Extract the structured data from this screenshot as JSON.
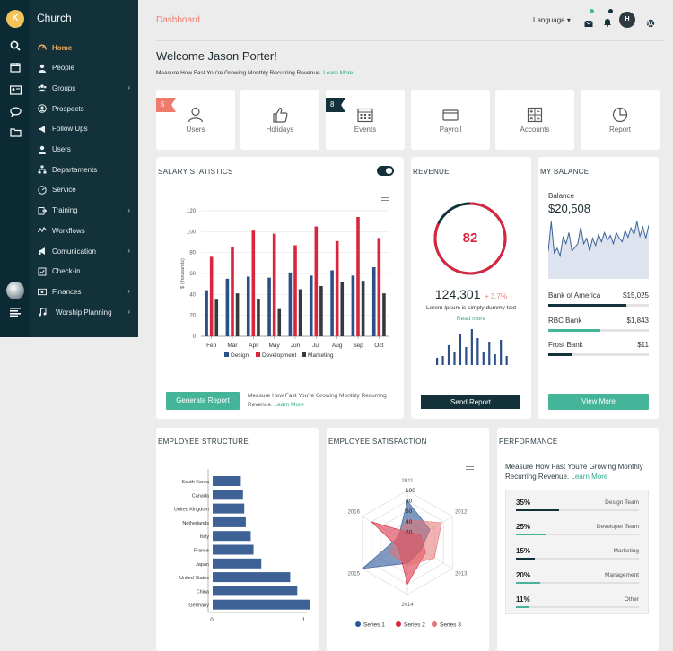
{
  "sidebar": {
    "brand": "Church",
    "logo_letter": "K",
    "items": [
      {
        "label": "Home",
        "icon": "gauge-icon",
        "active": true,
        "chevron": false
      },
      {
        "label": "People",
        "icon": "person-icon",
        "chevron": false
      },
      {
        "label": "Groups",
        "icon": "group-icon",
        "chevron": true
      },
      {
        "label": "Prospects",
        "icon": "user-circle-icon",
        "chevron": false
      },
      {
        "label": "Follow Ups",
        "icon": "megaphone-icon",
        "chevron": false
      },
      {
        "label": "Users",
        "icon": "users-icon",
        "chevron": false
      },
      {
        "label": "Departaments",
        "icon": "sitemap-icon",
        "chevron": false
      },
      {
        "label": "Service",
        "icon": "dial-icon",
        "chevron": false
      },
      {
        "label": "Training",
        "icon": "export-icon",
        "chevron": true
      },
      {
        "label": "Workflows",
        "icon": "wave-icon",
        "chevron": false
      },
      {
        "label": "Comunication",
        "icon": "bullhorn-icon",
        "chevron": true
      },
      {
        "label": "Check-in",
        "icon": "checkbox-icon",
        "chevron": false
      },
      {
        "label": "Finances",
        "icon": "money-icon",
        "chevron": true
      },
      {
        "label": "Worship Planning",
        "icon": "music-icon",
        "chevron": true
      }
    ],
    "chevron_glyph": "›"
  },
  "header": {
    "title": "Dashboard",
    "language": "Language ▾",
    "avatar": "H"
  },
  "welcome": {
    "title": "Welcome Jason Porter!",
    "subtitle": "Measure How Fast You're Growing Monthly Recurring Revenue.",
    "link": "Learn More"
  },
  "tiles": [
    {
      "label": "Users",
      "badge": "5",
      "badge_color": "red"
    },
    {
      "label": "Holidays"
    },
    {
      "label": "Events",
      "badge": "8",
      "badge_color": "navy"
    },
    {
      "label": "Payroll"
    },
    {
      "label": "Accounts"
    },
    {
      "label": "Report"
    }
  ],
  "salary": {
    "title": "SALARY STATISTICS",
    "button": "Generate Report",
    "note": "Measure How Fast You're Growing Monthly Recurring Revenue.",
    "note_link": "Learn More"
  },
  "revenue": {
    "title": "REVENUE",
    "gauge_value": "82",
    "amount": "124,301",
    "change": "+ 3.7%",
    "desc": "Lorem Ipsum is simply dummy text",
    "link": "Read more",
    "button": "Send Report"
  },
  "balance": {
    "title": "MY BALANCE",
    "label": "Balance",
    "amount": "$20,508",
    "rows": [
      {
        "name": "Bank of America",
        "amount": "$15,025",
        "fill": 0.78,
        "color": "#12313b"
      },
      {
        "name": "RBC Bank",
        "amount": "$1,843",
        "fill": 0.52,
        "color": "#45b59a"
      },
      {
        "name": "Frost Bank",
        "amount": "$11",
        "fill": 0.23,
        "color": "#12313b"
      }
    ],
    "button": "View More"
  },
  "structure": {
    "title": "EMPLOYEE STRUCTURE"
  },
  "satisfaction": {
    "title": "EMPLOYEE SATISFACTION"
  },
  "performance": {
    "title": "PERFORMANCE",
    "text": "Measure How Fast You're Growing Monthly Recurring Revenue.",
    "link": "Learn More",
    "rows": [
      {
        "pct": "35%",
        "name": "Design Team",
        "fill": 0.35,
        "color": "#12313b"
      },
      {
        "pct": "25%",
        "name": "Developer Team",
        "fill": 0.25,
        "color": "#45b59a"
      },
      {
        "pct": "15%",
        "name": "Marketing",
        "fill": 0.15,
        "color": "#12313b"
      },
      {
        "pct": "20%",
        "name": "Management",
        "fill": 0.2,
        "color": "#45b59a"
      },
      {
        "pct": "11%",
        "name": "Other",
        "fill": 0.11,
        "color": "#45b59a"
      }
    ]
  },
  "chart_data": [
    {
      "type": "bar",
      "id": "salary",
      "categories": [
        "Feb",
        "Mar",
        "Apr",
        "May",
        "Jun",
        "Jul",
        "Aug",
        "Sep",
        "Oct"
      ],
      "series": [
        {
          "name": "Design",
          "color": "#2b4f86",
          "values": [
            44,
            55,
            57,
            56,
            61,
            58,
            63,
            58,
            66
          ]
        },
        {
          "name": "Development",
          "color": "#d7263d",
          "values": [
            76,
            85,
            101,
            98,
            87,
            105,
            91,
            114,
            94
          ]
        },
        {
          "name": "Marketing",
          "color": "#343a40",
          "values": [
            35,
            41,
            36,
            26,
            45,
            48,
            52,
            53,
            41
          ]
        }
      ],
      "ylabel": "$ (thousands)",
      "yticks": [
        0,
        20,
        40,
        60,
        80,
        100,
        120
      ],
      "ylim": [
        0,
        120
      ]
    },
    {
      "type": "bar",
      "id": "revenue-mini",
      "values": [
        8,
        10,
        22,
        14,
        35,
        20,
        40,
        30,
        15,
        26,
        12,
        28,
        10
      ]
    },
    {
      "type": "line",
      "id": "balance-area",
      "values": [
        30,
        62,
        28,
        33,
        25,
        45,
        38,
        50,
        30,
        34,
        38,
        56,
        38,
        44,
        30,
        44,
        36,
        48,
        40,
        50,
        42,
        47,
        38,
        50,
        44,
        40,
        52,
        45,
        55,
        48,
        62,
        46,
        56,
        44,
        58
      ]
    },
    {
      "type": "bar",
      "id": "structure",
      "orientation": "horizontal",
      "categories": [
        "South Korea",
        "Canada",
        "United Kingdom",
        "Netherlands",
        "Italy",
        "France",
        "Japan",
        "United States",
        "China",
        "Germany"
      ],
      "values": [
        400,
        430,
        448,
        470,
        540,
        580,
        690,
        1100,
        1200,
        1380
      ],
      "xmax": 1400,
      "xtick_labels": [
        "0",
        "...",
        "...",
        "...",
        "...",
        "1..."
      ],
      "color": "#3e6296"
    },
    {
      "type": "radar",
      "id": "satisfaction",
      "categories": [
        "2011",
        "2012",
        "2013",
        "2014",
        "2015",
        "2016"
      ],
      "rticks": [
        20,
        40,
        60,
        80,
        100
      ],
      "rmax": 100,
      "series": [
        {
          "name": "Series 1",
          "color": "#2b5797",
          "values": [
            80,
            50,
            30,
            40,
            100,
            20
          ]
        },
        {
          "name": "Series 2",
          "color": "#d7263d",
          "values": [
            20,
            30,
            40,
            80,
            20,
            80
          ]
        },
        {
          "name": "Series 3",
          "color": "#e57373",
          "values": [
            44,
            76,
            60,
            44,
            40,
            24
          ]
        }
      ]
    }
  ]
}
